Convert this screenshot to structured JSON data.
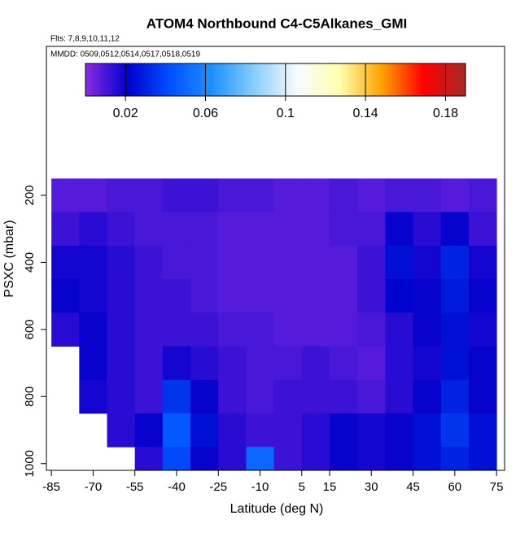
{
  "chart_data": {
    "type": "heatmap",
    "title": "ATOM4 Northbound C4-C5Alkanes_GMI",
    "subtitle": "Flts: 7,8,9,10,11,12",
    "annotation": "MMDD: 0509,0512,0514,0517,0518,0519",
    "x_label": "Latitude (deg N)",
    "y_label": "PSXC (mbar)",
    "x": [
      -80,
      -70,
      -60,
      -50,
      -40,
      -30,
      -20,
      -10,
      0,
      10,
      20,
      30,
      40,
      50,
      60,
      70
    ],
    "y": [
      200,
      300,
      400,
      500,
      600,
      700,
      800,
      900,
      1000
    ],
    "z": [
      [
        0.008,
        0.008,
        0.01,
        0.01,
        0.012,
        0.012,
        0.01,
        0.01,
        0.008,
        0.008,
        0.01,
        0.008,
        0.01,
        0.01,
        0.008,
        0.01
      ],
      [
        0.012,
        0.015,
        0.012,
        0.01,
        0.01,
        0.01,
        0.008,
        0.008,
        0.008,
        0.008,
        0.01,
        0.01,
        0.02,
        0.015,
        0.02,
        0.012
      ],
      [
        0.018,
        0.018,
        0.015,
        0.012,
        0.01,
        0.01,
        0.008,
        0.008,
        0.008,
        0.008,
        0.008,
        0.012,
        0.025,
        0.018,
        0.03,
        0.018
      ],
      [
        0.02,
        0.018,
        0.015,
        0.012,
        0.012,
        0.01,
        0.008,
        0.008,
        0.008,
        0.008,
        0.008,
        0.012,
        0.022,
        0.02,
        0.028,
        0.02
      ],
      [
        0.015,
        0.02,
        0.015,
        0.012,
        0.012,
        0.012,
        0.01,
        0.01,
        0.008,
        0.008,
        0.008,
        0.01,
        0.015,
        0.02,
        0.025,
        0.018
      ],
      [
        null,
        0.02,
        0.015,
        0.012,
        0.018,
        0.015,
        0.012,
        0.01,
        0.01,
        0.012,
        0.01,
        0.008,
        0.015,
        0.018,
        0.025,
        0.02
      ],
      [
        null,
        0.018,
        0.015,
        0.012,
        0.035,
        0.02,
        0.012,
        0.01,
        0.012,
        0.012,
        0.012,
        0.01,
        0.015,
        0.02,
        0.03,
        0.02
      ],
      [
        null,
        null,
        0.015,
        0.02,
        0.045,
        0.025,
        0.015,
        0.012,
        0.012,
        0.015,
        0.02,
        0.018,
        0.02,
        0.025,
        0.035,
        0.025
      ],
      [
        null,
        null,
        null,
        0.015,
        0.04,
        0.02,
        0.015,
        0.05,
        0.012,
        0.015,
        0.02,
        0.018,
        0.02,
        0.025,
        0.03,
        0.025
      ]
    ],
    "xlim": [
      -86.8,
      77.9
    ],
    "xticks": [
      -85,
      -70,
      -55,
      -40,
      -25,
      -10,
      5,
      15,
      30,
      45,
      60,
      75
    ],
    "ylim": [
      1020,
      -244
    ],
    "yticks": [
      200,
      400,
      600,
      800,
      1000
    ],
    "colorbar_lim": [
      0,
      0.19
    ],
    "colorbar_ticks": [
      0.02,
      0.06,
      0.1,
      0.14,
      0.18
    ],
    "colorscale": [
      "#8a2be2",
      "#0000cd",
      "#0050ff",
      "#1e90ff",
      "#87cefa",
      "#f8fbff",
      "#ffffb0",
      "#ffa500",
      "#ff0000",
      "#a52a2a"
    ]
  }
}
